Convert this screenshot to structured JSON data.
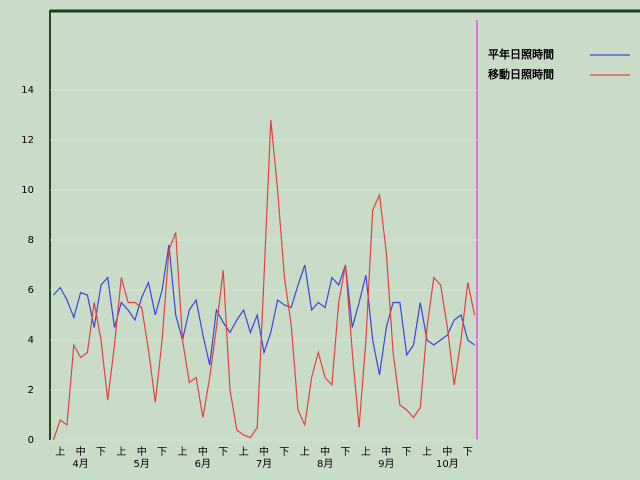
{
  "chart_data": {
    "type": "line",
    "categories": [
      null,
      "上",
      null,
      null,
      "中",
      null,
      null,
      "下",
      null,
      null,
      "上",
      null,
      null,
      "中",
      null,
      null,
      "下",
      null,
      null,
      "上",
      null,
      null,
      "中",
      null,
      null,
      "下",
      null,
      null,
      "上",
      null,
      null,
      "中",
      null,
      null,
      "下",
      null,
      null,
      "上",
      null,
      null,
      "中",
      null,
      null,
      "下",
      null,
      null,
      "上",
      null,
      null,
      "中",
      null,
      null,
      "下",
      null,
      null,
      "上",
      null,
      null,
      "中",
      null,
      null,
      "下",
      null
    ],
    "months": [
      "4月",
      "5月",
      "6月",
      "7月",
      "8月",
      "9月",
      "10月"
    ],
    "series": [
      {
        "name": "平年日照時間",
        "color": "#3c46dc",
        "values": [
          5.8,
          6.1,
          5.6,
          4.9,
          5.9,
          5.8,
          4.5,
          6.2,
          6.5,
          4.5,
          5.5,
          5.2,
          4.8,
          5.7,
          6.3,
          5,
          6,
          7.8,
          5,
          4,
          5.2,
          5.6,
          4.2,
          3,
          5.2,
          4.7,
          4.3,
          4.8,
          5.2,
          4.3,
          5,
          3.5,
          4.3,
          5.6,
          5.4,
          5.3,
          6.2,
          7,
          5.2,
          5.5,
          5.3,
          6.5,
          6.2,
          7,
          4.5,
          5.5,
          6.6,
          4,
          2.6,
          4.5,
          5.5,
          5.5,
          3.4,
          3.8,
          5.5,
          4,
          3.8,
          4,
          4.2,
          4.8,
          5,
          4,
          3.8
        ]
      },
      {
        "name": "移動日照時間",
        "color": "#e64040",
        "values": [
          0,
          0.8,
          0.6,
          3.8,
          3.3,
          3.5,
          5.5,
          4,
          1.6,
          3.8,
          6.5,
          5.5,
          5.5,
          5.3,
          3.6,
          1.5,
          4,
          7.6,
          8.3,
          4,
          2.3,
          2.5,
          0.9,
          2.5,
          4.5,
          6.8,
          2,
          0.4,
          0.2,
          0.1,
          0.5,
          6.5,
          12.8,
          10,
          6.5,
          4.6,
          1.2,
          0.6,
          2.5,
          3.5,
          2.5,
          2.2,
          5.5,
          7,
          3.5,
          0.5,
          4,
          9.2,
          9.8,
          7.5,
          3.5,
          1.4,
          1.2,
          0.9,
          1.3,
          4.5,
          6.5,
          6.2,
          4.5,
          2.2,
          4,
          6.3,
          5
        ]
      }
    ],
    "ylim": [
      0,
      17.2
    ],
    "yticks": [
      0,
      2,
      4,
      6,
      8,
      10,
      12,
      14
    ],
    "grid": true
  }
}
